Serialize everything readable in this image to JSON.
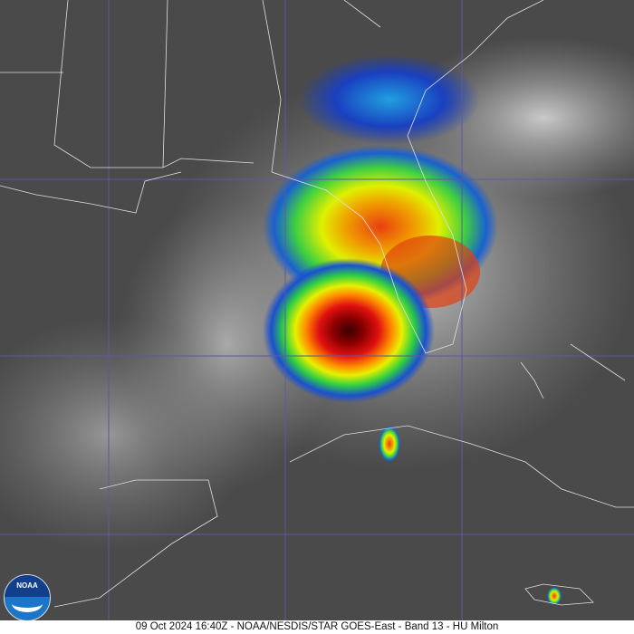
{
  "caption": "09 Oct 2024 16:40Z - NOAA/NESDIS/STAR GOES-East - Band 13 - HU Milton",
  "logo": {
    "text": "NOAA"
  },
  "colors": {
    "background": "#4a4a4a",
    "grid": "#5a5aa0",
    "borders": "#e0e0e0",
    "cold_red": "#c00000",
    "core": "#5a0000",
    "yellow": "#e8f000",
    "green": "#30d040",
    "blue": "#1a50d0"
  }
}
